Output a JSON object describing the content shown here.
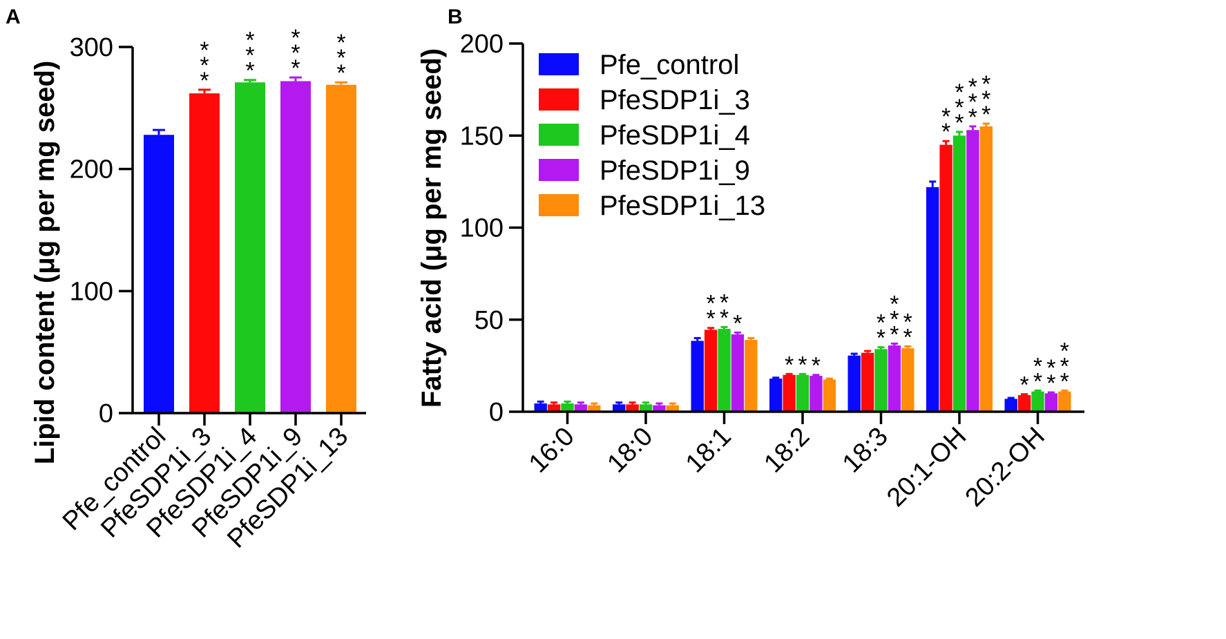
{
  "colors": {
    "Pfe_control": "#0a0aff",
    "PfeSDP1i_3": "#ff0a0a",
    "PfeSDP1i_4": "#1ec81e",
    "PfeSDP1i_9": "#b419f0",
    "PfeSDP1i_13": "#ff8c0a"
  },
  "chart_data": [
    {
      "panel": "A",
      "type": "bar",
      "ylabel": "Lipid content (μg per mg seed)",
      "ylim": [
        0,
        300
      ],
      "yticks": [
        0,
        100,
        200,
        300
      ],
      "categories": [
        "Pfe_control",
        "PfeSDP1i_3",
        "PfeSDP1i_4",
        "PfeSDP1i_9",
        "PfeSDP1i_13"
      ],
      "values": [
        228,
        262,
        271,
        272,
        269
      ],
      "errors": [
        4,
        3,
        2,
        3,
        2
      ],
      "significance": [
        "",
        "***",
        "***",
        "***",
        "***"
      ]
    },
    {
      "panel": "B",
      "type": "bar",
      "ylabel": "Fatty acid (μg per mg seed)",
      "ylim": [
        0,
        200
      ],
      "yticks": [
        0,
        50,
        100,
        150,
        200
      ],
      "categories": [
        "16:0",
        "18:0",
        "18:1",
        "18:2",
        "18:3",
        "20:1-OH",
        "20:2-OH"
      ],
      "legend_position": "top-left",
      "series": [
        {
          "name": "Pfe_control",
          "values": [
            4.5,
            4,
            38.5,
            18,
            30.5,
            122,
            7
          ],
          "errors": [
            1,
            1,
            1.5,
            0.5,
            1,
            3,
            0.5
          ],
          "significance": [
            "",
            "",
            "",
            "",
            "",
            "",
            ""
          ]
        },
        {
          "name": "PfeSDP1i_3",
          "values": [
            4,
            4,
            44.5,
            20,
            32,
            145,
            9
          ],
          "errors": [
            1,
            1,
            1,
            0.5,
            1,
            2,
            0.5
          ],
          "significance": [
            "",
            "",
            "**",
            "*",
            "",
            "**",
            "*"
          ]
        },
        {
          "name": "PfeSDP1i_4",
          "values": [
            4.5,
            4,
            45,
            20,
            34,
            150,
            11
          ],
          "errors": [
            1,
            1,
            1,
            0.5,
            1,
            2,
            0.5
          ],
          "significance": [
            "",
            "",
            "**",
            "*",
            "**",
            "***",
            "**"
          ]
        },
        {
          "name": "PfeSDP1i_9",
          "values": [
            4,
            3.5,
            42,
            19.5,
            36,
            153,
            10
          ],
          "errors": [
            1,
            1,
            1,
            0.5,
            1,
            2,
            0.5
          ],
          "significance": [
            "",
            "",
            "*",
            "*",
            "***",
            "***",
            "**"
          ]
        },
        {
          "name": "PfeSDP1i_13",
          "values": [
            3.5,
            3.5,
            39,
            17.5,
            34.5,
            155,
            11
          ],
          "errors": [
            1,
            1,
            1,
            0.5,
            1,
            1.5,
            0.5
          ],
          "significance": [
            "",
            "",
            "",
            "",
            "**",
            "***",
            "***"
          ]
        }
      ]
    }
  ]
}
